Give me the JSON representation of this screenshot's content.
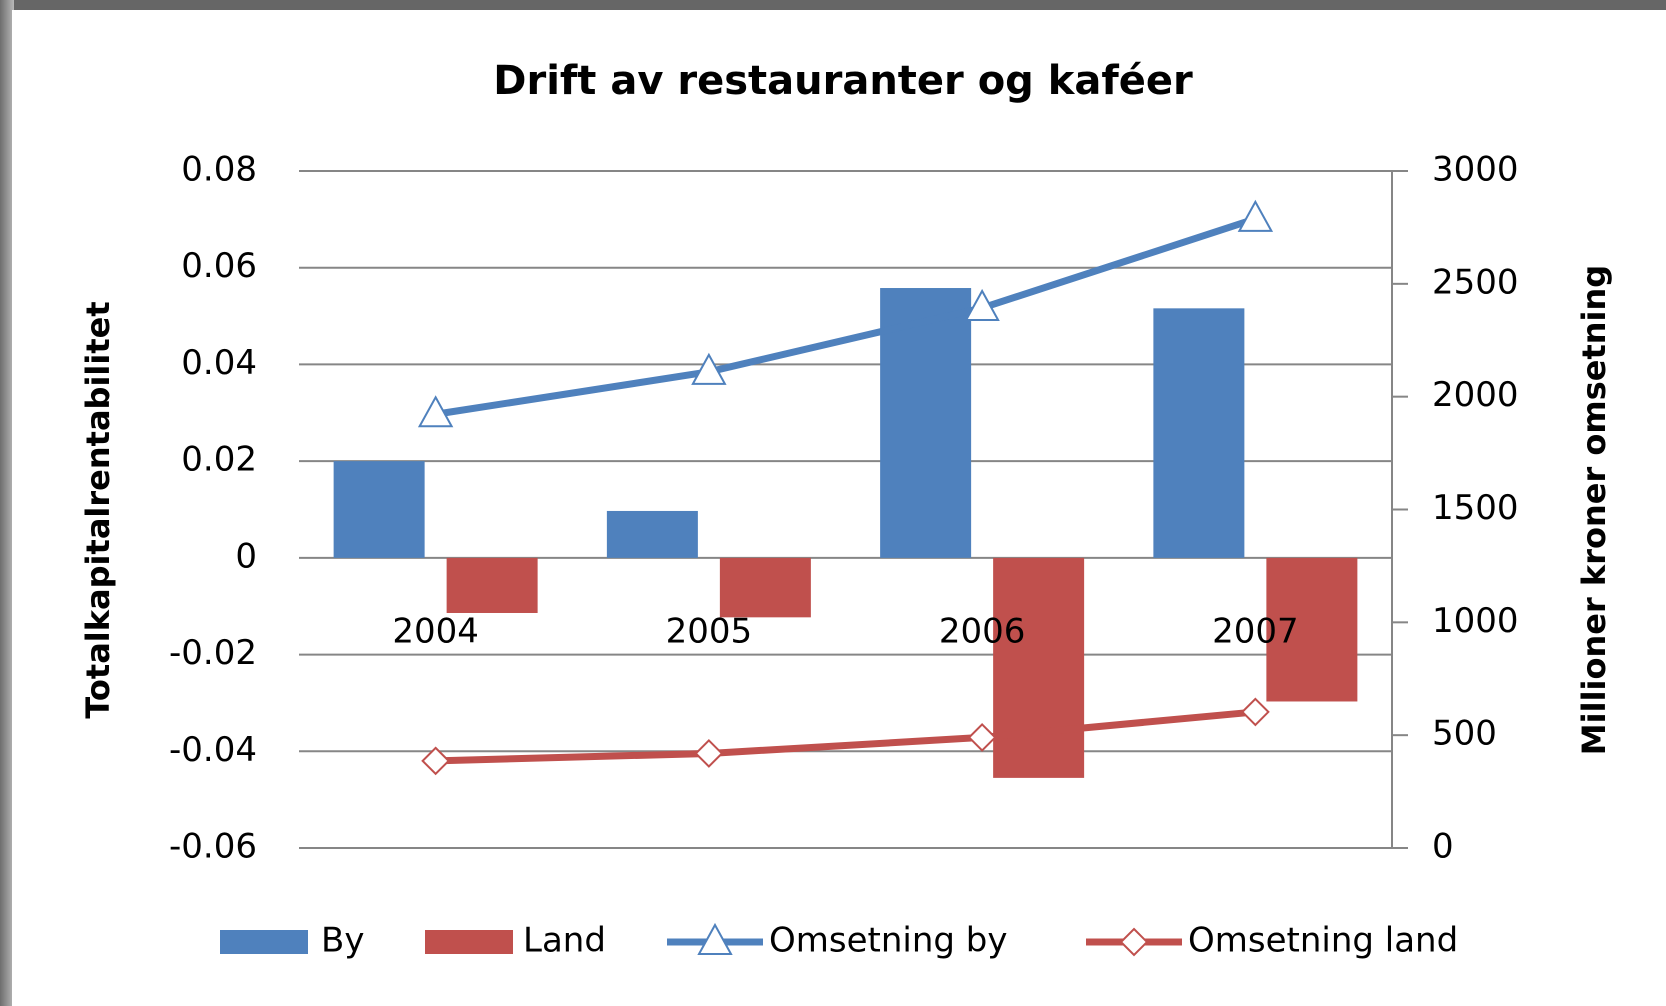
{
  "chart_data": {
    "type": "bar",
    "title": "Drift av restauranter og kaféer",
    "categories": [
      "2004",
      "2005",
      "2006",
      "2007"
    ],
    "series": [
      {
        "name": "By",
        "type": "bar",
        "color": "#4f81bd",
        "values": [
          0.02,
          0.0097,
          0.0558,
          0.0516
        ]
      },
      {
        "name": "Land",
        "type": "bar",
        "color": "#c0504d",
        "values": [
          -0.0114,
          -0.0123,
          -0.0455,
          -0.0297
        ]
      },
      {
        "name": "Omsetning by",
        "type": "line",
        "axis": "y2",
        "marker": "triangle",
        "color": "#4f81bd",
        "values": [
          1922,
          2110,
          2393,
          2788
        ]
      },
      {
        "name": "Omsetning land",
        "type": "line",
        "axis": "y2",
        "marker": "diamond",
        "color": "#c0504d",
        "values": [
          386,
          419,
          490,
          603
        ]
      }
    ],
    "ylabel": "Totalkapitalrentabilitet",
    "y2label": "Millioner kroner omsetning",
    "ylim": [
      -0.06,
      0.08
    ],
    "yticks": [
      -0.06,
      -0.04,
      -0.02,
      0,
      0.02,
      0.04,
      0.06,
      0.08
    ],
    "y2lim": [
      0,
      3000
    ],
    "y2ticks": [
      0,
      500,
      1000,
      1500,
      2000,
      2500,
      3000
    ],
    "grid": true,
    "legend": "bottom"
  }
}
